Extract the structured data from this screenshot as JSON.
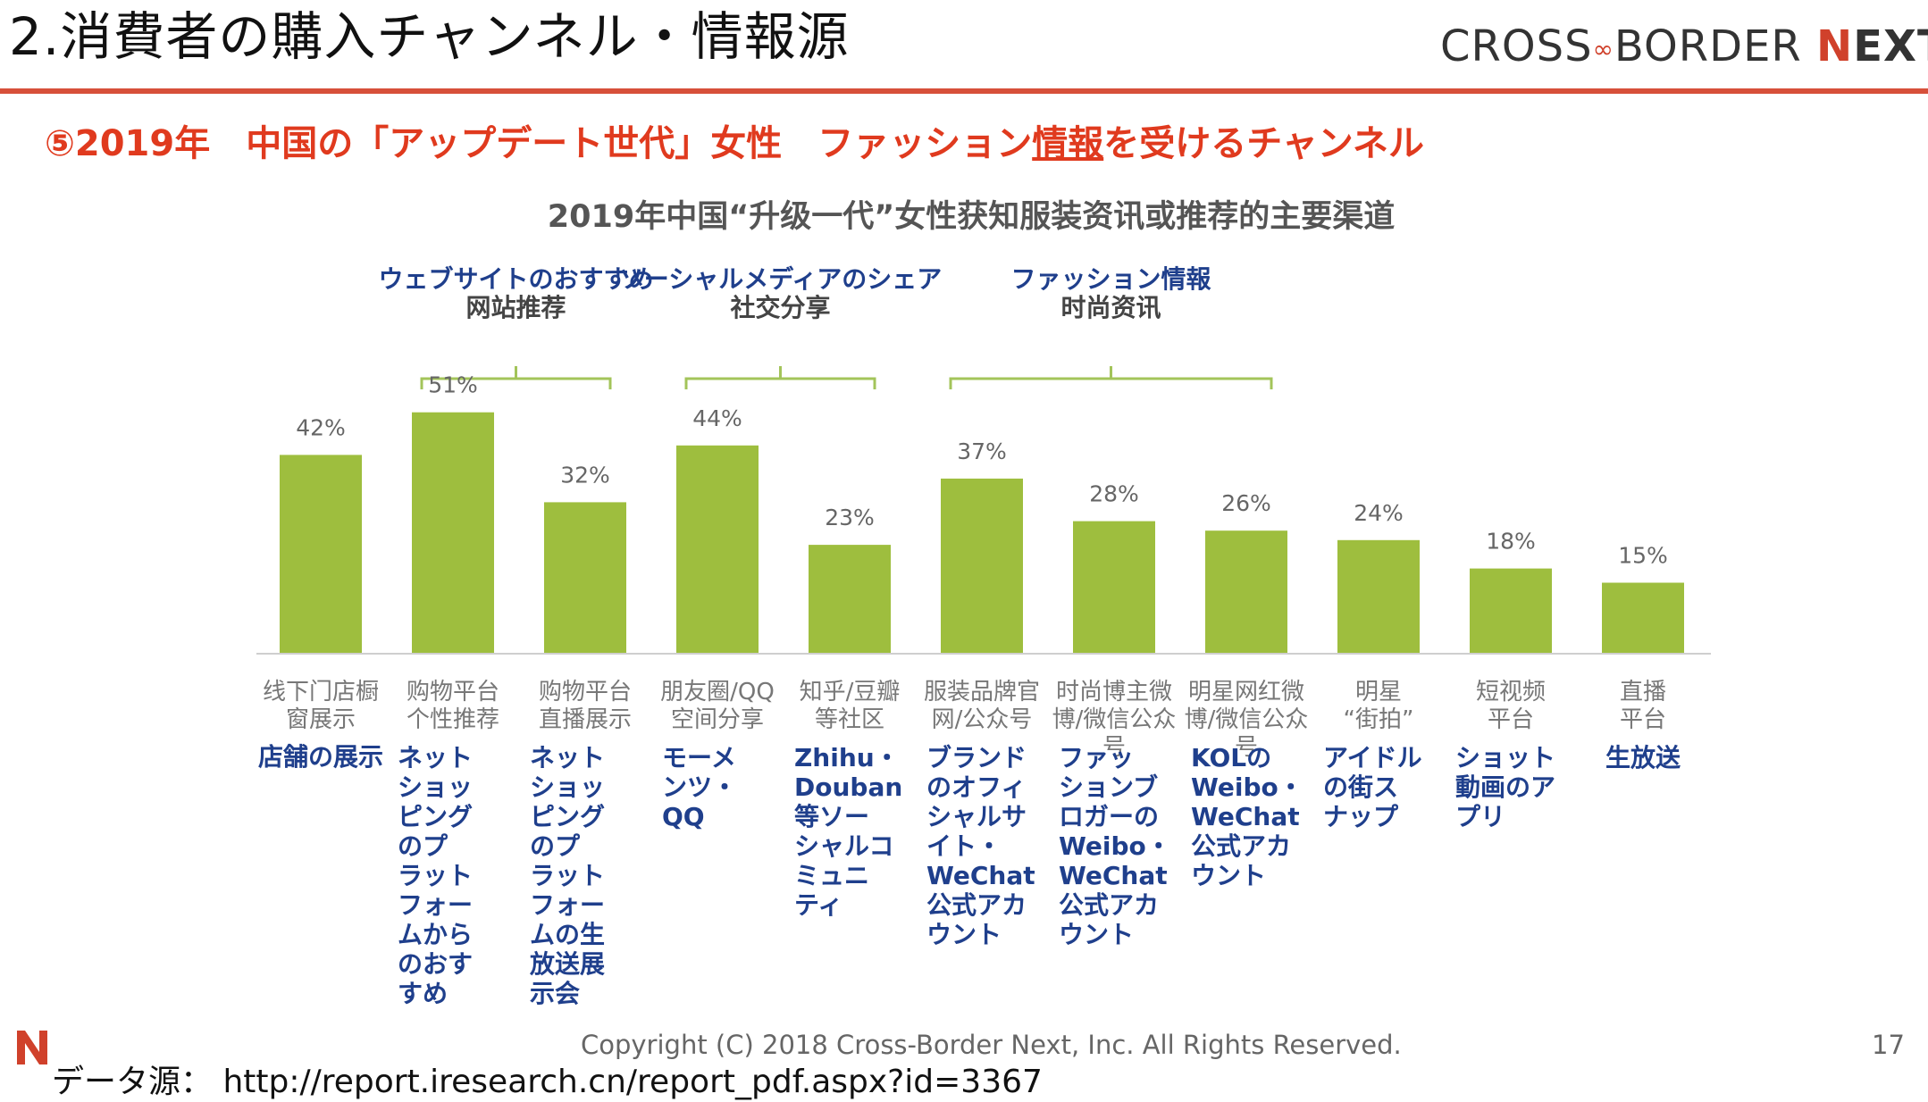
{
  "header": {
    "title": "2.消費者の購入チャンネル・情報源",
    "brand": "CROSS∞BORDER NEXT",
    "subtitle_pre": "⑤2019年　中国の「アップデート世代」女性　ファッション",
    "subtitle_ul": "情報",
    "subtitle_post": "を受けるチャンネル"
  },
  "chart_data": {
    "type": "bar",
    "title": "2019年中国“升级一代”女性获知服装资讯或推荐的主要渠道",
    "categories": [
      "线下门店橱窗展示",
      "购物平台个性推荐",
      "购物平台直播展示",
      "朋友圈/QQ空间分享",
      "知乎/豆瓣等社区",
      "服装品牌官网/公众号",
      "时尚博主微博/微信公众号",
      "明星网红微博/微信公众号",
      "明星“街拍”",
      "短视频平台",
      "直播平台"
    ],
    "values": [
      42,
      51,
      32,
      44,
      23,
      37,
      28,
      26,
      24,
      18,
      15
    ],
    "value_labels": [
      "42%",
      "51%",
      "32%",
      "44%",
      "23%",
      "37%",
      "28%",
      "26%",
      "24%",
      "18%",
      "15%"
    ],
    "category_lines": [
      [
        "线下门店橱",
        "窗展示"
      ],
      [
        "购物平台",
        "个性推荐"
      ],
      [
        "购物平台",
        "直播展示"
      ],
      [
        "朋友圈/QQ",
        "空间分享"
      ],
      [
        "知乎/豆瓣",
        "等社区"
      ],
      [
        "服装品牌官",
        "网/公众号"
      ],
      [
        "时尚博主微",
        "博/微信公众",
        "号"
      ],
      [
        "明星网红微",
        "博/微信公众",
        "号"
      ],
      [
        "明星",
        "“街拍”"
      ],
      [
        "短视频",
        "平台"
      ],
      [
        "直播",
        "平台"
      ]
    ],
    "translations": [
      [
        "店舗の展示"
      ],
      [
        "ネット",
        "ショッ",
        "ピング",
        "のプ",
        "ラット",
        "フォー",
        "ムから",
        "のおす",
        "すめ"
      ],
      [
        "ネット",
        "ショッ",
        "ピング",
        "のプ",
        "ラット",
        "フォー",
        "ムの生",
        "放送展",
        "示会"
      ],
      [
        "モーメ",
        "ンツ・",
        "QQ"
      ],
      [
        "Zhihu・",
        "Douban",
        "等ソー",
        "シャルコ",
        "ミュニ",
        "ティ"
      ],
      [
        "ブランド",
        "のオフィ",
        "シャルサ",
        "イト・",
        "WeChat",
        "公式アカ",
        "ウント"
      ],
      [
        "ファッ",
        "ションブ",
        "ロガーの",
        "Weibo・",
        "WeChat",
        "公式アカ",
        "ウント"
      ],
      [
        "KOLの",
        "Weibo・",
        "WeChat",
        "公式アカ",
        "ウント"
      ],
      [
        "アイドル",
        "の街ス",
        "ナップ"
      ],
      [
        "ショット",
        "動画のア",
        "プリ"
      ],
      [
        "生放送"
      ]
    ],
    "groups": [
      {
        "label_ja": "ウェブサイトのおすすめ",
        "label_zh": "网站推荐",
        "from": 1,
        "to": 2
      },
      {
        "label_ja": "ソーシャルメディアのシェア",
        "label_zh": "社交分享",
        "from": 3,
        "to": 4
      },
      {
        "label_ja": "ファッション情報",
        "label_zh": "时尚资讯",
        "from": 5,
        "to": 7
      }
    ],
    "bar_color": "#9ebe3e",
    "group_bracket_color": "#a3c45a",
    "group_label_color": "#1f3f8c",
    "translation_color": "#1f3f8c",
    "ylim": [
      0,
      60
    ]
  },
  "footer": {
    "copyright": "Copyright (C) 2018 Cross-Border Next, Inc. All Rights Reserved.",
    "page_number": "17",
    "source": "データ源： http://report.iresearch.cn/report_pdf.aspx?id=3367"
  }
}
